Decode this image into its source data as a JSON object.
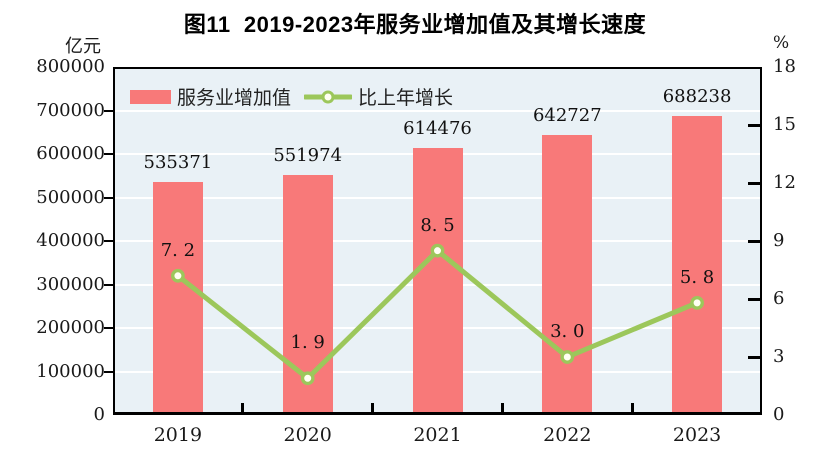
{
  "title": "图11  2019-2023年服务业增加值及其增长速度",
  "chart_data": {
    "type": "bar+line",
    "categories": [
      "2019",
      "2020",
      "2021",
      "2022",
      "2023"
    ],
    "series": [
      {
        "name": "服务业增加值",
        "type": "bar",
        "axis": "left",
        "values": [
          535371,
          551974,
          614476,
          642727,
          688238
        ],
        "value_labels": [
          "535371",
          "551974",
          "614476",
          "642727",
          "688238"
        ],
        "color": "#F87979"
      },
      {
        "name": "比上年增长",
        "type": "line",
        "axis": "right",
        "values": [
          7.2,
          1.9,
          8.5,
          3.0,
          5.8
        ],
        "value_labels": [
          "7. 2",
          "1. 9",
          "8. 5",
          "3. 0",
          "5. 8"
        ],
        "color": "#9CC75B",
        "marker_fill": "#FFFFF2"
      }
    ],
    "left_axis": {
      "unit": "亿元",
      "min": 0,
      "max": 800000,
      "tick_values": [
        0,
        100000,
        200000,
        300000,
        400000,
        500000,
        600000,
        700000,
        800000
      ],
      "tick_labels": [
        "0",
        "100000",
        "200000",
        "300000",
        "400000",
        "500000",
        "600000",
        "700000",
        "800000"
      ]
    },
    "right_axis": {
      "unit": "%",
      "min": 0,
      "max": 18,
      "tick_values": [
        0,
        3,
        6,
        9,
        12,
        15,
        18
      ],
      "tick_labels": [
        "0",
        "3",
        "6",
        "9",
        "12",
        "15",
        "18"
      ]
    },
    "grid": true,
    "legend_position": "top-left-inside"
  },
  "colors": {
    "plot_bg": "#E9F1F6",
    "grid": "#FFFFFF",
    "axis": "#000000",
    "text": "#1A1A1A"
  }
}
